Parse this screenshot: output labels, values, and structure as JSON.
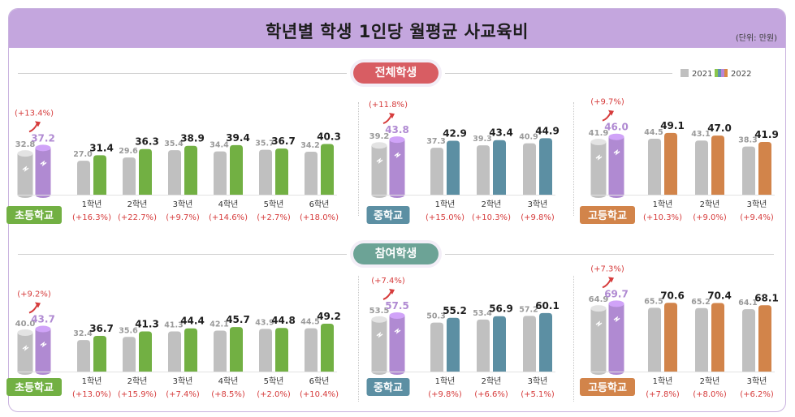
{
  "title": "학년별 학생 1인당 월평균 사교육비",
  "unit": "(단위: 만원)",
  "legend": [
    {
      "label": "2021",
      "color": "#c0c0c0"
    },
    {
      "label": "2022",
      "colors": [
        "#8ac64c",
        "#5e93ad",
        "#b785d8",
        "#d98843"
      ]
    }
  ],
  "sections": [
    {
      "label": "전체학생"
    },
    {
      "label": "참여학생"
    }
  ],
  "chart_data": [
    {
      "type": "bar",
      "section": "전체학생",
      "group": "초등학교",
      "color": "#72b043",
      "overall": {
        "label": "초등학교",
        "v2021": 32.8,
        "v2022": 37.2,
        "change": "(+13.4%)"
      },
      "categories": [
        "1학년",
        "2학년",
        "3학년",
        "4학년",
        "5학년",
        "6학년"
      ],
      "series": [
        {
          "name": "2021",
          "values": [
            27.0,
            29.6,
            35.4,
            34.4,
            35.7,
            34.2
          ]
        },
        {
          "name": "2022",
          "values": [
            31.4,
            36.3,
            38.9,
            39.4,
            36.7,
            40.3
          ]
        }
      ],
      "changes": [
        "(+16.3%)",
        "(+22.7%)",
        "(+9.7%)",
        "(+14.6%)",
        "(+2.7%)",
        "(+18.0%)"
      ]
    },
    {
      "type": "bar",
      "section": "전체학생",
      "group": "중학교",
      "color": "#5c8fa3",
      "overall": {
        "label": "중학교",
        "v2021": 39.2,
        "v2022": 43.8,
        "change": "(+11.8%)"
      },
      "categories": [
        "1학년",
        "2학년",
        "3학년"
      ],
      "series": [
        {
          "name": "2021",
          "values": [
            37.3,
            39.3,
            40.9
          ]
        },
        {
          "name": "2022",
          "values": [
            42.9,
            43.4,
            44.9
          ]
        }
      ],
      "changes": [
        "(+15.0%)",
        "(+10.3%)",
        "(+9.8%)"
      ]
    },
    {
      "type": "bar",
      "section": "전체학생",
      "group": "고등학교",
      "color": "#d2844a",
      "overall": {
        "label": "고등학교",
        "v2021": 41.9,
        "v2022": 46.0,
        "change": "(+9.7%)"
      },
      "categories": [
        "1학년",
        "2학년",
        "3학년"
      ],
      "series": [
        {
          "name": "2021",
          "values": [
            44.5,
            43.1,
            38.3
          ]
        },
        {
          "name": "2022",
          "values": [
            49.1,
            47.0,
            41.9
          ]
        }
      ],
      "changes": [
        "(+10.3%)",
        "(+9.0%)",
        "(+9.4%)"
      ]
    },
    {
      "type": "bar",
      "section": "참여학생",
      "group": "초등학교",
      "color": "#72b043",
      "overall": {
        "label": "초등학교",
        "v2021": 40.0,
        "v2022": 43.7,
        "change": "(+9.2%)"
      },
      "categories": [
        "1학년",
        "2학년",
        "3학년",
        "4학년",
        "5학년",
        "6학년"
      ],
      "series": [
        {
          "name": "2021",
          "values": [
            32.4,
            35.6,
            41.3,
            42.1,
            43.9,
            44.5
          ]
        },
        {
          "name": "2022",
          "values": [
            36.7,
            41.3,
            44.4,
            45.7,
            44.8,
            49.2
          ]
        }
      ],
      "changes": [
        "(+13.0%)",
        "(+15.9%)",
        "(+7.4%)",
        "(+8.5%)",
        "(+2.0%)",
        "(+10.4%)"
      ]
    },
    {
      "type": "bar",
      "section": "참여학생",
      "group": "중학교",
      "color": "#5c8fa3",
      "overall": {
        "label": "중학교",
        "v2021": 53.5,
        "v2022": 57.5,
        "change": "(+7.4%)"
      },
      "categories": [
        "1학년",
        "2학년",
        "3학년"
      ],
      "series": [
        {
          "name": "2021",
          "values": [
            50.3,
            53.4,
            57.2
          ]
        },
        {
          "name": "2022",
          "values": [
            55.2,
            56.9,
            60.1
          ]
        }
      ],
      "changes": [
        "(+9.8%)",
        "(+6.6%)",
        "(+5.1%)"
      ]
    },
    {
      "type": "bar",
      "section": "참여학생",
      "group": "고등학교",
      "color": "#d2844a",
      "overall": {
        "label": "고등학교",
        "v2021": 64.9,
        "v2022": 69.7,
        "change": "(+7.3%)"
      },
      "categories": [
        "1학년",
        "2학년",
        "3학년"
      ],
      "series": [
        {
          "name": "2021",
          "values": [
            65.5,
            65.2,
            64.1
          ]
        },
        {
          "name": "2022",
          "values": [
            70.6,
            70.4,
            68.1
          ]
        }
      ],
      "changes": [
        "(+7.8%)",
        "(+8.0%)",
        "(+6.2%)"
      ]
    }
  ],
  "colors": {
    "header": "#c4a6de",
    "bar2021": "#c0c0c0",
    "change": "#d63c3c",
    "overall2022": "#b08ad2"
  }
}
